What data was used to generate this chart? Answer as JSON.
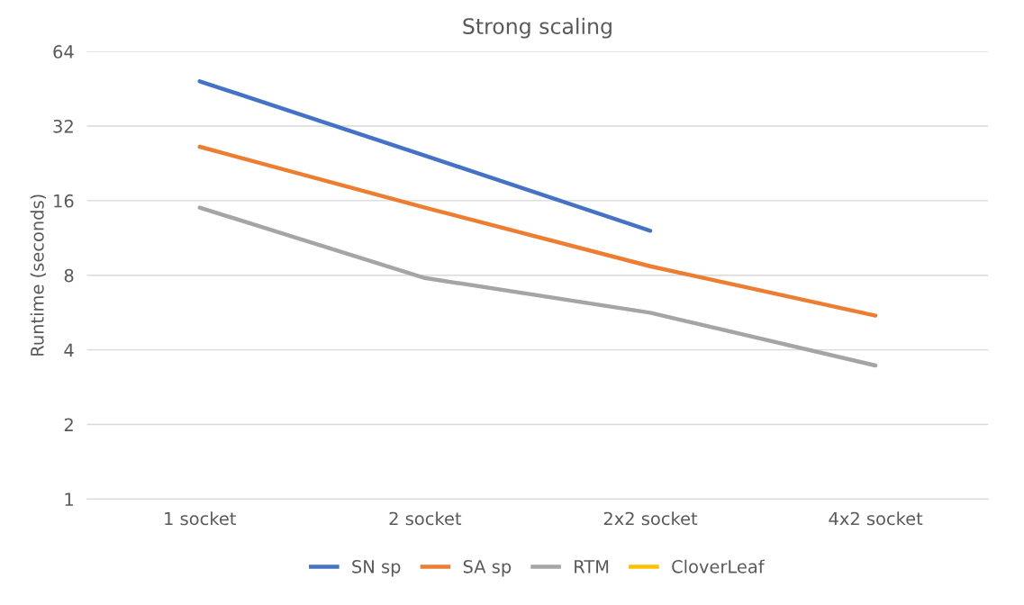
{
  "chart_data": {
    "type": "line",
    "title": "Strong scaling",
    "ylabel": "Runtime (seconds)",
    "categories": [
      "1 socket",
      "2 socket",
      "2x2 socket",
      "4x2 socket"
    ],
    "series": [
      {
        "name": "SN sp",
        "color": "#4472c4",
        "values": [
          48.5,
          24.3,
          12.1,
          null
        ]
      },
      {
        "name": "SA sp",
        "color": "#ed7d31",
        "values": [
          26.4,
          15.0,
          8.7,
          5.5
        ]
      },
      {
        "name": "RTM",
        "color": "#a5a5a5",
        "values": [
          15.0,
          7.8,
          5.65,
          3.46
        ]
      },
      {
        "name": "CloverLeaf",
        "color": "#ffc000",
        "values": [
          null,
          null,
          null,
          null
        ]
      }
    ],
    "log": "y",
    "ylim": [
      1,
      64
    ],
    "yticks": [
      1,
      2,
      4,
      8,
      16,
      32,
      64
    ],
    "grid": "y",
    "legend": "bottom",
    "marker": "none",
    "line_style": "solid"
  }
}
